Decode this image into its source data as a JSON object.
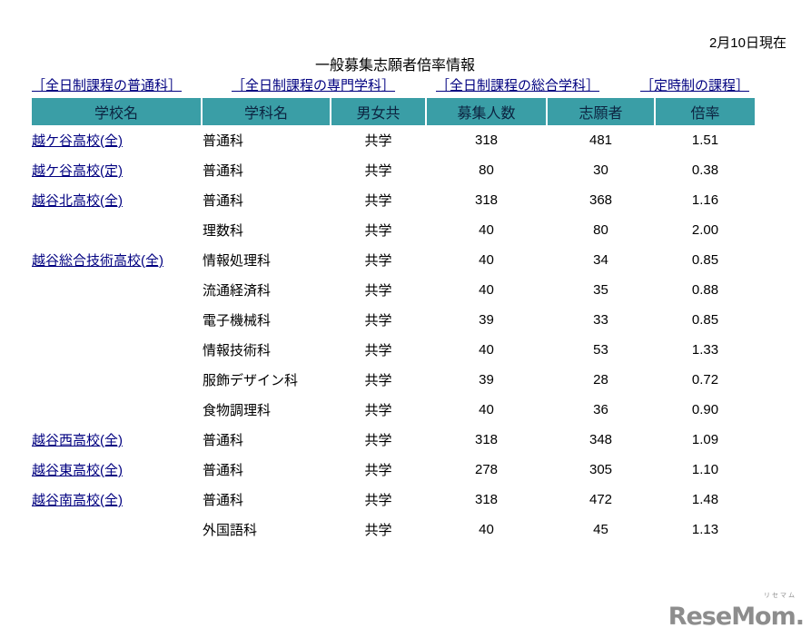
{
  "page": {
    "date_label": "2月10日現在",
    "title": "一般募集志願者倍率情報"
  },
  "nav_links": [
    {
      "label": "［全日制課程の普通科］"
    },
    {
      "label": "［全日制課程の専門学科］"
    },
    {
      "label": "［全日制課程の総合学科］"
    },
    {
      "label": "［定時制の課程］"
    }
  ],
  "table": {
    "headers": [
      "学校名",
      "学科名",
      "男女共",
      "募集人数",
      "志願者",
      "倍率"
    ],
    "rows": [
      {
        "school": "越ケ谷高校(全)",
        "dept": "普通科",
        "coed": "共学",
        "capacity": "318",
        "applicants": "481",
        "ratio": "1.51"
      },
      {
        "school": "越ケ谷高校(定)",
        "dept": "普通科",
        "coed": "共学",
        "capacity": "80",
        "applicants": "30",
        "ratio": "0.38"
      },
      {
        "school": "越谷北高校(全)",
        "dept": "普通科",
        "coed": "共学",
        "capacity": "318",
        "applicants": "368",
        "ratio": "1.16"
      },
      {
        "school": "",
        "dept": "理数科",
        "coed": "共学",
        "capacity": "40",
        "applicants": "80",
        "ratio": "2.00"
      },
      {
        "school": "越谷総合技術高校(全)",
        "dept": "情報処理科",
        "coed": "共学",
        "capacity": "40",
        "applicants": "34",
        "ratio": "0.85"
      },
      {
        "school": "",
        "dept": "流通経済科",
        "coed": "共学",
        "capacity": "40",
        "applicants": "35",
        "ratio": "0.88"
      },
      {
        "school": "",
        "dept": "電子機械科",
        "coed": "共学",
        "capacity": "39",
        "applicants": "33",
        "ratio": "0.85"
      },
      {
        "school": "",
        "dept": "情報技術科",
        "coed": "共学",
        "capacity": "40",
        "applicants": "53",
        "ratio": "1.33"
      },
      {
        "school": "",
        "dept": "服飾デザイン科",
        "coed": "共学",
        "capacity": "39",
        "applicants": "28",
        "ratio": "0.72"
      },
      {
        "school": "",
        "dept": "食物調理科",
        "coed": "共学",
        "capacity": "40",
        "applicants": "36",
        "ratio": "0.90"
      },
      {
        "school": "越谷西高校(全)",
        "dept": "普通科",
        "coed": "共学",
        "capacity": "318",
        "applicants": "348",
        "ratio": "1.09"
      },
      {
        "school": "越谷東高校(全)",
        "dept": "普通科",
        "coed": "共学",
        "capacity": "278",
        "applicants": "305",
        "ratio": "1.10"
      },
      {
        "school": "越谷南高校(全)",
        "dept": "普通科",
        "coed": "共学",
        "capacity": "318",
        "applicants": "472",
        "ratio": "1.48"
      },
      {
        "school": "",
        "dept": "外国語科",
        "coed": "共学",
        "capacity": "40",
        "applicants": "45",
        "ratio": "1.13"
      }
    ]
  },
  "logo": {
    "text": "ReseMom.",
    "kana": "リセマム"
  },
  "colors": {
    "header_bg": "#3A9EA6",
    "header_text": "#0c2340",
    "link": "#000080",
    "logo": "#8d8d8d"
  }
}
